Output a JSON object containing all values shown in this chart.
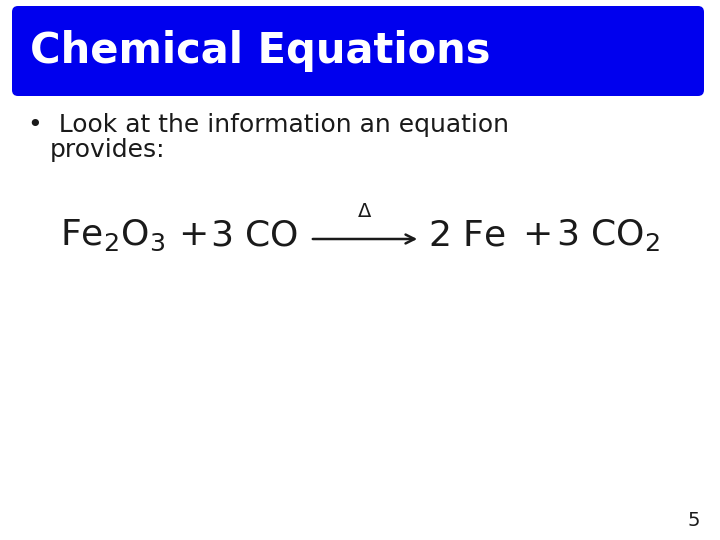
{
  "title": "Chemical Equations",
  "title_bg_color": "#0000EE",
  "title_text_color": "#FFFFFF",
  "title_fontsize": 30,
  "bullet_text_line1": "Look at the information an equation",
  "bullet_text_line2": "provides:",
  "bullet_fontsize": 18,
  "bg_color": "#FFFFFF",
  "text_color": "#1a1a1a",
  "equation_fontsize": 26,
  "page_number": "5",
  "page_number_fontsize": 14
}
